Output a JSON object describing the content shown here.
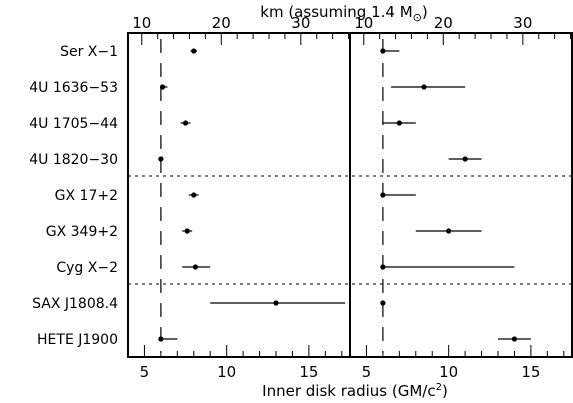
{
  "chart_data": {
    "type": "scatter",
    "top_axis_title": "km (assuming 1.4 M",
    "top_axis_symbol": "⊙",
    "top_axis_close": ")",
    "bottom_axis_title": "Inner disk radius (GM/c",
    "bottom_axis_exponent": "2",
    "bottom_axis_close": ")",
    "bottom_ticks": [
      "5",
      "10",
      "15",
      "5",
      "10",
      "15"
    ],
    "top_ticks": [
      "10",
      "20",
      "30",
      "10",
      "20",
      "30"
    ],
    "km_per_gm": 2.0675,
    "xlim": [
      4,
      17.5
    ],
    "dashed_reference_x": 6,
    "row_separators_after": [
      3,
      6
    ],
    "sources": [
      "Ser X-1",
      "4U 1636-53",
      "4U 1705-44",
      "4U 1820-30",
      "GX 17+2",
      "GX 349+2",
      "Cyg X-2",
      "SAX J1808.4",
      "HETE J1900"
    ],
    "panels": [
      {
        "points": [
          {
            "x": 8.0,
            "lo": 7.8,
            "hi": 8.2
          },
          {
            "x": 6.1,
            "lo": 6.0,
            "hi": 6.4
          },
          {
            "x": 7.5,
            "lo": 7.2,
            "hi": 7.8
          },
          {
            "x": 6.0,
            "lo": 5.95,
            "hi": 6.05
          },
          {
            "x": 8.0,
            "lo": 7.7,
            "hi": 8.3
          },
          {
            "x": 7.6,
            "lo": 7.3,
            "hi": 7.9
          },
          {
            "x": 8.1,
            "lo": 7.3,
            "hi": 9.0
          },
          {
            "x": 13.0,
            "lo": 9.0,
            "hi": 17.2
          },
          {
            "x": 6.0,
            "lo": 6.0,
            "hi": 7.0
          }
        ]
      },
      {
        "points": [
          {
            "x": 6.0,
            "lo": 6.0,
            "hi": 7.0
          },
          {
            "x": 8.5,
            "lo": 6.5,
            "hi": 11.0
          },
          {
            "x": 7.0,
            "lo": 6.0,
            "hi": 8.0
          },
          {
            "x": 11.0,
            "lo": 10.0,
            "hi": 12.0
          },
          {
            "x": 6.0,
            "lo": 6.0,
            "hi": 8.0
          },
          {
            "x": 10.0,
            "lo": 8.0,
            "hi": 12.0
          },
          {
            "x": 6.0,
            "lo": 6.0,
            "hi": 14.0
          },
          {
            "x": 6.0,
            "lo": 5.95,
            "hi": 6.05
          },
          {
            "x": 14.0,
            "lo": 13.0,
            "hi": 15.0
          }
        ]
      }
    ]
  }
}
